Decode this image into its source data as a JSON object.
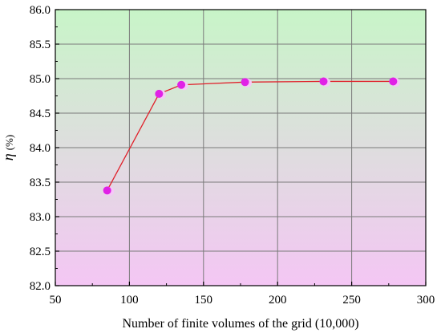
{
  "chart_data": {
    "type": "line",
    "x": [
      85,
      120,
      135,
      178,
      231,
      278
    ],
    "series": [
      {
        "values": [
          83.38,
          84.78,
          84.91,
          84.95,
          84.96,
          84.96
        ],
        "line_color": "#e0202a",
        "marker_color": "#e022e6",
        "marker_shadow_color": "#f6c8f8"
      }
    ],
    "xlabel": "Number of finite volumes of the grid (10,000)",
    "ylabel_symbol": "η",
    "ylabel_unit": "(%)",
    "xlim": [
      50,
      300
    ],
    "ylim": [
      82.0,
      86.0
    ],
    "x_ticks": [
      "50",
      "100",
      "150",
      "200",
      "250",
      "300"
    ],
    "y_ticks": [
      "82.0",
      "82.5",
      "83.0",
      "83.5",
      "84.0",
      "84.5",
      "85.0",
      "85.5",
      "86.0"
    ],
    "grid": true,
    "background_gradient": {
      "top": "#c8f5c8",
      "bottom": "#f4c6f4"
    },
    "grid_color": "#7a7a7a"
  }
}
